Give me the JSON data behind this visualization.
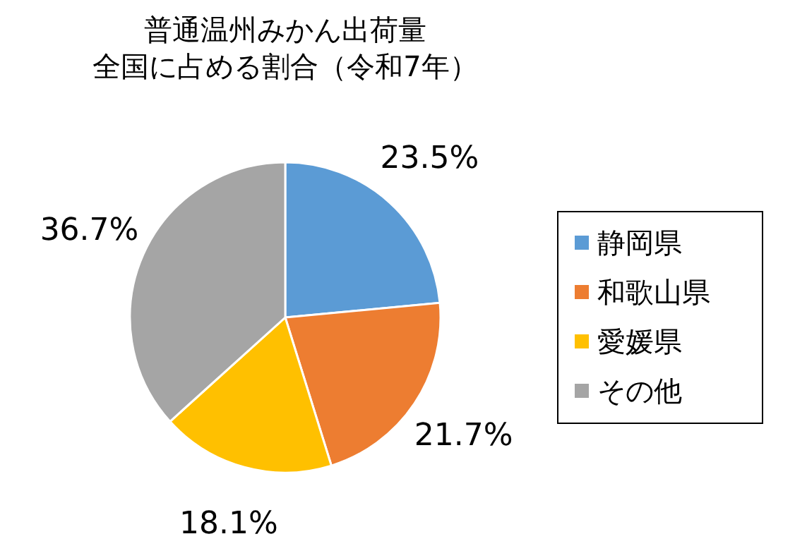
{
  "chart_data": {
    "type": "pie",
    "title": "普通温州みかん出荷量",
    "subtitle": "全国に占める割合（令和7年）",
    "categories": [
      "静岡県",
      "和歌山県",
      "愛媛県",
      "その他"
    ],
    "values": [
      23.5,
      21.7,
      18.1,
      36.7
    ],
    "colors": [
      "#5b9bd5",
      "#ed7d31",
      "#ffc000",
      "#a5a5a5"
    ],
    "value_labels": [
      "23.5%",
      "21.7%",
      "18.1%",
      "36.7%"
    ],
    "legend": "right"
  }
}
